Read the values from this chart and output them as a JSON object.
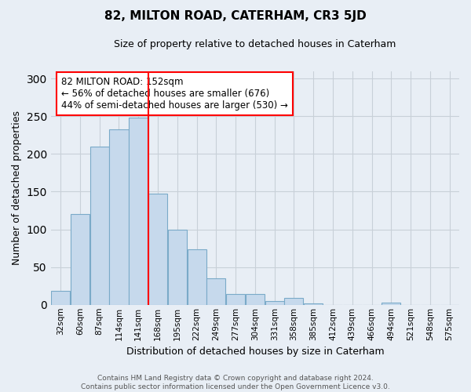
{
  "title": "82, MILTON ROAD, CATERHAM, CR3 5JD",
  "subtitle": "Size of property relative to detached houses in Caterham",
  "xlabel": "Distribution of detached houses by size in Caterham",
  "ylabel": "Number of detached properties",
  "bin_labels": [
    "32sqm",
    "60sqm",
    "87sqm",
    "114sqm",
    "141sqm",
    "168sqm",
    "195sqm",
    "222sqm",
    "249sqm",
    "277sqm",
    "304sqm",
    "331sqm",
    "358sqm",
    "385sqm",
    "412sqm",
    "439sqm",
    "466sqm",
    "494sqm",
    "521sqm",
    "548sqm",
    "575sqm"
  ],
  "bar_heights": [
    18,
    120,
    210,
    233,
    248,
    147,
    100,
    74,
    35,
    14,
    14,
    5,
    9,
    2,
    0,
    0,
    0,
    3,
    0,
    0,
    0
  ],
  "bar_color": "#c6d9ec",
  "bar_edge_color": "#7aaac8",
  "vline_index": 4,
  "annotation_text": "82 MILTON ROAD: 152sqm\n← 56% of detached houses are smaller (676)\n44% of semi-detached houses are larger (530) →",
  "annotation_box_color": "white",
  "annotation_box_edge_color": "red",
  "vline_color": "red",
  "ylim": [
    0,
    310
  ],
  "yticks": [
    0,
    50,
    100,
    150,
    200,
    250,
    300
  ],
  "grid_color": "#c8d0d8",
  "background_color": "#e8eef5",
  "footer_line1": "Contains HM Land Registry data © Crown copyright and database right 2024.",
  "footer_line2": "Contains public sector information licensed under the Open Government Licence v3.0."
}
